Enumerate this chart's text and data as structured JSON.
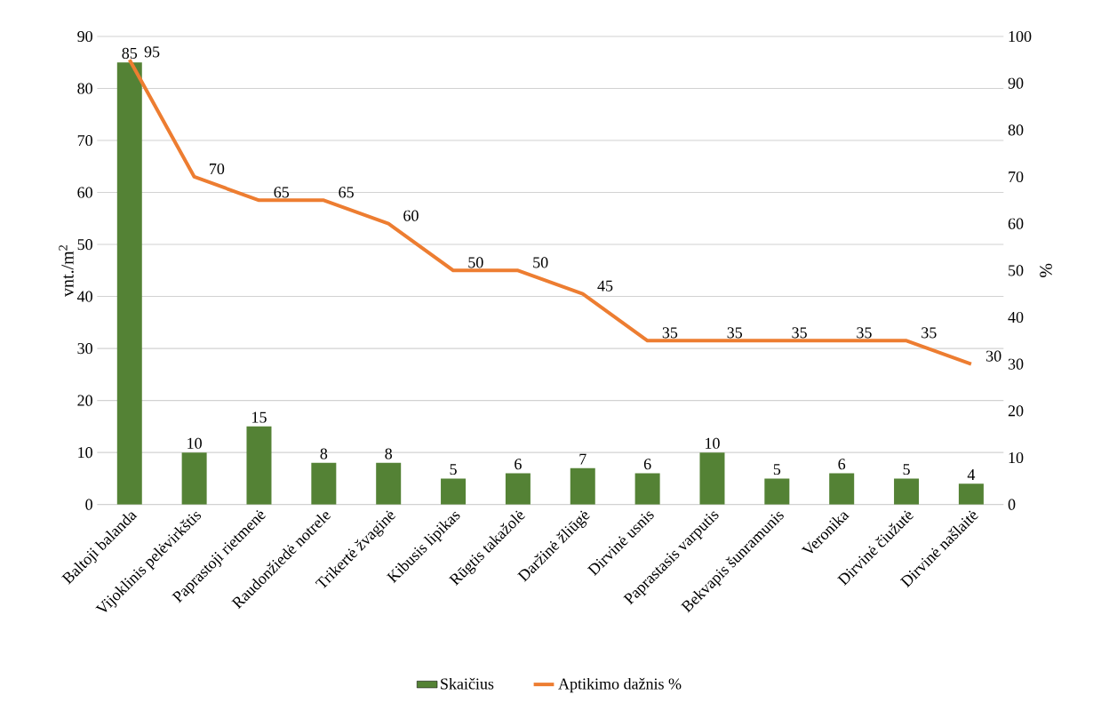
{
  "chart_data": {
    "type": "bar",
    "categories": [
      "Baltoji balanda",
      "Vijoklinis pelėvirkštis",
      "Paprastoji rietmenė",
      "Raudonžiedė notrele",
      "Trikertė žvaginė",
      "Kibusis lipikas",
      "Rūgtis takažolė",
      "Daržinė žliūgė",
      "Dirvinė usnis",
      "Paprastasis varputis",
      "Bekvapis šunramunis",
      "Veronika",
      "Dirvinė čiužutė",
      "Dirvinė našlaitė"
    ],
    "series": [
      {
        "name": "Skaičius",
        "color": "#548235",
        "values": [
          85,
          10,
          15,
          8,
          8,
          5,
          6,
          7,
          6,
          10,
          5,
          6,
          5,
          4
        ]
      },
      {
        "name": "Aptikimo dažnis %",
        "type": "line",
        "axis": "y2",
        "color": "#ed7d31",
        "values": [
          95,
          70,
          65,
          65,
          60,
          50,
          50,
          45,
          35,
          35,
          35,
          35,
          35,
          30
        ]
      }
    ],
    "ylabel": "vnt./m$^{2}$",
    "y2label": "%",
    "ylim": [
      0,
      90
    ],
    "yticks": [
      0,
      10,
      20,
      30,
      40,
      50,
      60,
      70,
      80,
      90
    ],
    "y2lim": [
      0,
      100
    ],
    "y2ticks": [
      0,
      10,
      20,
      30,
      40,
      50,
      60,
      70,
      80,
      90,
      100
    ],
    "grid": "y",
    "legend": "bottom",
    "data_labels": true,
    "marker": "none",
    "line_style": "solid"
  }
}
